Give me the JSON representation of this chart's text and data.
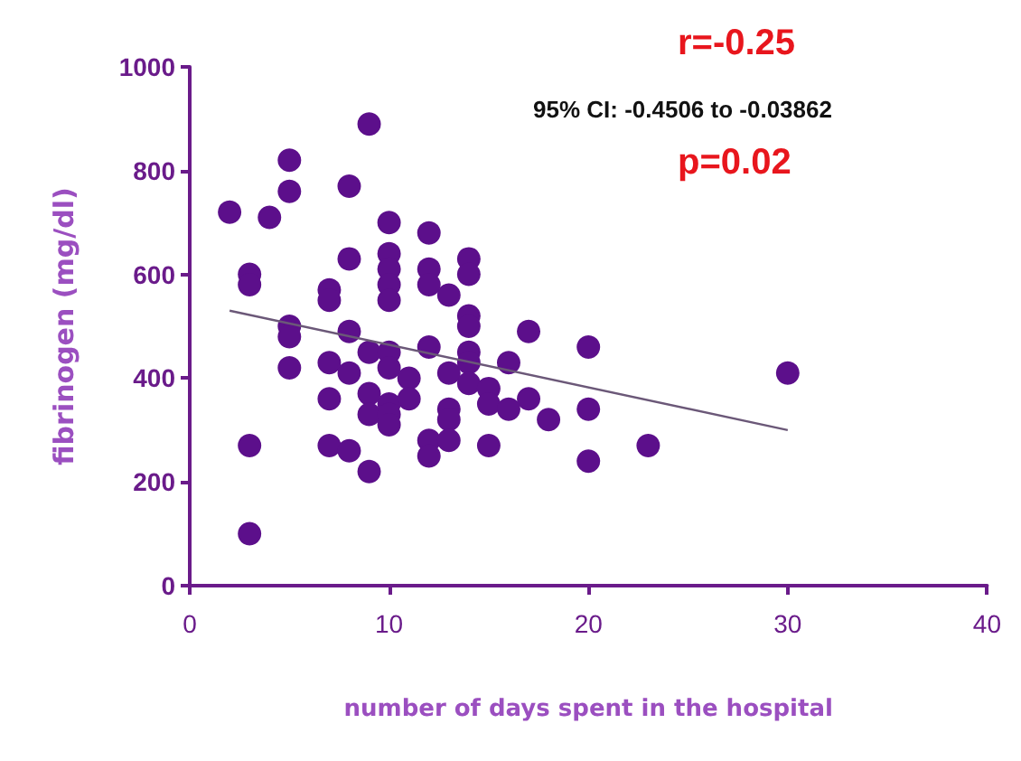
{
  "chart_data": {
    "type": "scatter",
    "xlabel": "number of days spent in the hospital",
    "ylabel": "fibrinogen (mg/dl)",
    "annotations": [
      "r=-0.25",
      "95% CI: -0.4506 to -0.03862",
      "p=0.02"
    ],
    "xlim": [
      0,
      40
    ],
    "xticks": [
      0,
      10,
      20,
      30,
      40
    ],
    "ylim": [
      0,
      1000
    ],
    "yticks": [
      0,
      200,
      400,
      600,
      800,
      1000
    ],
    "grid": false,
    "marker": "circle",
    "series": [
      {
        "color": "#5c0f8b",
        "x": [
          2,
          9,
          5,
          5,
          8,
          4,
          10,
          12,
          3,
          3,
          8,
          10,
          10,
          10,
          10,
          12,
          12,
          13,
          7,
          7,
          5,
          5,
          8,
          9,
          10,
          12,
          5,
          7,
          8,
          10,
          11,
          13,
          7,
          9,
          10,
          11,
          9,
          10,
          10,
          13,
          13,
          3,
          7,
          8,
          9,
          12,
          12,
          13,
          3,
          14,
          14,
          14,
          14,
          17,
          20,
          14,
          14,
          16,
          14,
          15,
          15,
          17,
          16,
          18,
          20,
          20,
          23,
          15,
          30
        ],
        "values": [
          720,
          890,
          820,
          760,
          770,
          710,
          700,
          680,
          600,
          580,
          630,
          640,
          610,
          580,
          550,
          610,
          580,
          560,
          570,
          550,
          500,
          480,
          490,
          450,
          450,
          460,
          420,
          430,
          410,
          420,
          400,
          410,
          360,
          370,
          350,
          360,
          330,
          330,
          310,
          340,
          320,
          270,
          270,
          260,
          220,
          280,
          250,
          280,
          100,
          630,
          600,
          520,
          500,
          490,
          460,
          450,
          430,
          430,
          390,
          380,
          350,
          360,
          340,
          320,
          340,
          240,
          270,
          270,
          410
        ]
      },
      {
        "type": "line",
        "color": "#6b5878",
        "marker": "none",
        "x": [
          2,
          30
        ],
        "values": [
          530,
          300
        ]
      }
    ]
  }
}
